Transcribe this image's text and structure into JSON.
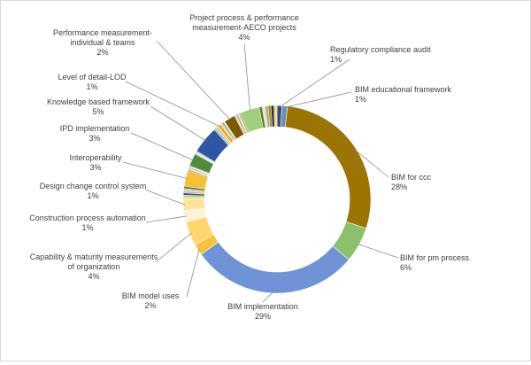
{
  "chart_data": {
    "type": "pie",
    "variant": "donut",
    "title": "",
    "legend": "none",
    "colors": {
      "background": "#ffffff",
      "border": "#d9d9d9",
      "leader_line": "#8c8c8c",
      "text": "#404040"
    },
    "labeled_segments": [
      {
        "name": "Regulatory compliance audit",
        "value": 1,
        "label_text": "1%",
        "color": "#2e4d8a"
      },
      {
        "name": "BIM educational framework",
        "value": 1,
        "label_text": "1%",
        "color": "#6b8fb0"
      },
      {
        "name": "BIM for ccc",
        "value": 28,
        "label_text": "28%",
        "color": "#9c7404"
      },
      {
        "name": "BIM for pm process",
        "value": 6,
        "label_text": "6%",
        "color": "#8cc06a"
      },
      {
        "name": "BIM implementation",
        "value": 29,
        "label_text": "29%",
        "color": "#6f93d6"
      },
      {
        "name": "BIM model uses",
        "value": 2,
        "label_text": "2%",
        "color": "#f7c336"
      },
      {
        "name": "Capability & maturity measurements of organization",
        "value": 4,
        "label_text": "4%",
        "color": "#ffd66e"
      },
      {
        "name": "Construction process automation",
        "value": 1,
        "label_text": "1%",
        "color": "#fff3d6"
      },
      {
        "name": "Design change control system",
        "value": 1,
        "label_text": "1%",
        "color": "#ffe4a0"
      },
      {
        "name": "Interoperability",
        "value": 3,
        "label_text": "3%",
        "color": "#f5c236"
      },
      {
        "name": "IPD implementation",
        "value": 3,
        "label_text": "3%",
        "color": "#4f8c3a"
      },
      {
        "name": "Knowledge based framework",
        "value": 5,
        "label_text": "5%",
        "color": "#2f55a4"
      },
      {
        "name": "Level of detail-LOD",
        "value": 1,
        "label_text": "1%",
        "color": "#f0a500"
      },
      {
        "name": "Performance measurement-individual & teams",
        "value": 2,
        "label_text": "2%",
        "color": "#7a5a00"
      },
      {
        "name": "Project process & performance measurement-AECO projects",
        "value": 4,
        "label_text": "4%",
        "color": "#9ecf7d"
      }
    ]
  }
}
